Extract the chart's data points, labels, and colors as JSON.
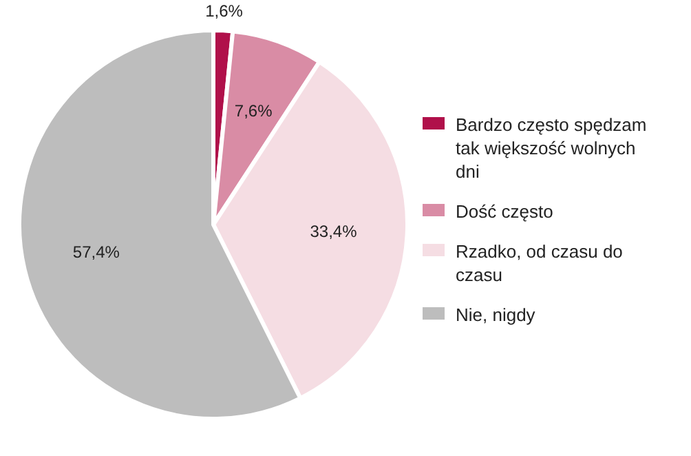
{
  "chart_data": {
    "type": "pie",
    "categories": [
      "Bardzo często spędzam tak większość wolnych dni",
      "Dość często",
      "Rzadko, od czasu do czasu",
      "Nie, nigdy"
    ],
    "values": [
      1.6,
      7.6,
      33.4,
      57.4
    ],
    "colors": [
      "#b0104a",
      "#d98ca5",
      "#f5dde3",
      "#bdbdbd"
    ],
    "value_labels": [
      "1,6%",
      "7,6%",
      "33,4%",
      "57,4%"
    ],
    "legend": "right"
  }
}
